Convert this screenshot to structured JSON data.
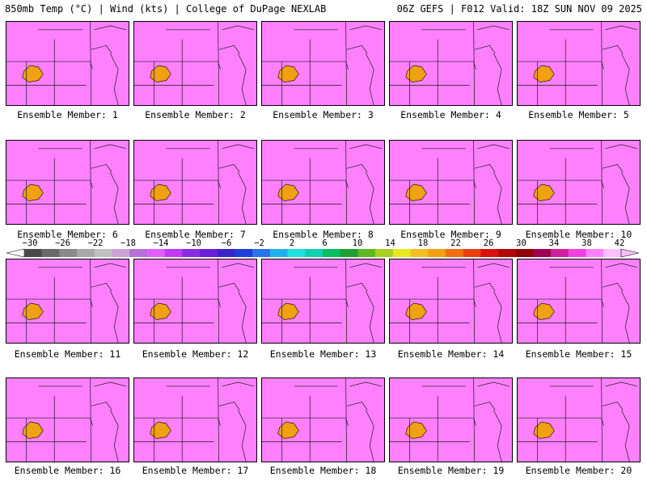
{
  "header": {
    "left": "850mb Temp (°C) | Wind (kts) | College of DuPage NEXLAB",
    "right": "06Z GEFS | F012 Valid: 18Z SUN NOV 09 2025"
  },
  "colorbar": {
    "tick_labels": [
      "−30",
      "−26",
      "−22",
      "−18",
      "−14",
      "−10",
      "−6",
      "−2",
      "2",
      "6",
      "10",
      "14",
      "18",
      "22",
      "26",
      "30",
      "34",
      "38",
      "42"
    ],
    "colors": [
      "#4a4a4a",
      "#6a6a6a",
      "#8a8a8a",
      "#a8a8a8",
      "#c0c0c0",
      "#c9a3d8",
      "#b970d6",
      "#e060ff",
      "#c03cf0",
      "#8a2be2",
      "#6a1fd8",
      "#3b25c8",
      "#1f3fd8",
      "#2a74e8",
      "#20b0f0",
      "#20e0e0",
      "#10d0b0",
      "#00c060",
      "#20a030",
      "#60b820",
      "#a8d020",
      "#e8e820",
      "#f0c020",
      "#f0a010",
      "#f07010",
      "#e84010",
      "#d81010",
      "#b00808",
      "#900000",
      "#a00050",
      "#d020a0",
      "#f040e0",
      "#ff80ff",
      "#ffc0ff"
    ]
  },
  "panels": [
    {
      "label": "Ensemble Member: 1"
    },
    {
      "label": "Ensemble Member: 2"
    },
    {
      "label": "Ensemble Member: 3"
    },
    {
      "label": "Ensemble Member: 4"
    },
    {
      "label": "Ensemble Member: 5"
    },
    {
      "label": "Ensemble Member: 6"
    },
    {
      "label": "Ensemble Member: 7"
    },
    {
      "label": "Ensemble Member: 8"
    },
    {
      "label": "Ensemble Member: 9"
    },
    {
      "label": "Ensemble Member: 10"
    },
    {
      "label": "Ensemble Member: 11"
    },
    {
      "label": "Ensemble Member: 12"
    },
    {
      "label": "Ensemble Member: 13"
    },
    {
      "label": "Ensemble Member: 14"
    },
    {
      "label": "Ensemble Member: 15"
    },
    {
      "label": "Ensemble Member: 16"
    },
    {
      "label": "Ensemble Member: 17"
    },
    {
      "label": "Ensemble Member: 18"
    },
    {
      "label": "Ensemble Member: 19"
    },
    {
      "label": "Ensemble Member: 20"
    }
  ]
}
